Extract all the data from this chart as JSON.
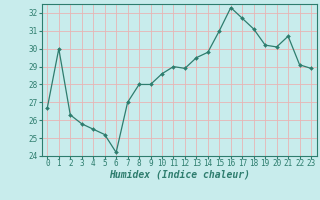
{
  "x": [
    0,
    1,
    2,
    3,
    4,
    5,
    6,
    7,
    8,
    9,
    10,
    11,
    12,
    13,
    14,
    15,
    16,
    17,
    18,
    19,
    20,
    21,
    22,
    23
  ],
  "y": [
    26.7,
    30.0,
    26.3,
    25.8,
    25.5,
    25.2,
    24.2,
    27.0,
    28.0,
    28.0,
    28.6,
    29.0,
    28.9,
    29.5,
    29.8,
    31.0,
    32.3,
    31.7,
    31.1,
    30.2,
    30.1,
    30.7,
    29.1,
    28.9
  ],
  "xlabel": "Humidex (Indice chaleur)",
  "ylim": [
    24,
    32.5
  ],
  "xlim": [
    -0.5,
    23.5
  ],
  "yticks": [
    24,
    25,
    26,
    27,
    28,
    29,
    30,
    31,
    32
  ],
  "xtick_labels": [
    "0",
    "1",
    "2",
    "3",
    "4",
    "5",
    "6",
    "7",
    "8",
    "9",
    "10",
    "11",
    "12",
    "13",
    "14",
    "15",
    "16",
    "17",
    "18",
    "19",
    "20",
    "21",
    "22",
    "23"
  ],
  "line_color": "#2e7d6e",
  "marker_color": "#2e7d6e",
  "bg_color": "#c8ecec",
  "grid_color": "#e8b4b4",
  "tick_color": "#2e7d6e",
  "label_fontsize": 6.0,
  "xlabel_fontsize": 7.0,
  "tick_fontsize": 5.5
}
